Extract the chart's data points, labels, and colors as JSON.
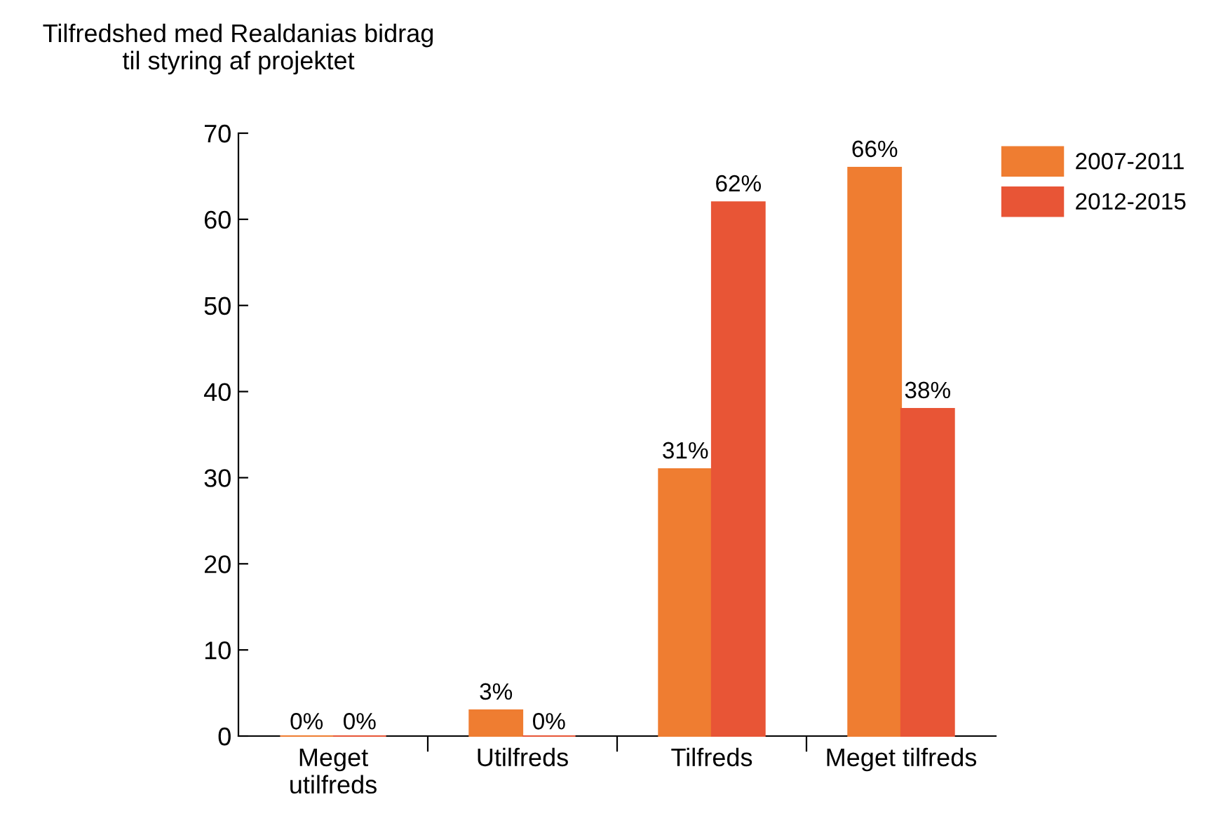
{
  "chart_data": {
    "type": "bar",
    "title": "Tilfredshed med Realdanias bidrag\ntil styring af projektet",
    "categories": [
      "Meget\nutilfreds",
      "Utilfreds",
      "Tilfreds",
      "Meget tilfreds"
    ],
    "series": [
      {
        "name": "2007-2011",
        "color": "#ef7d31",
        "values": [
          0,
          3,
          31,
          66
        ],
        "value_labels": [
          "0%",
          "3%",
          "31%",
          "66%"
        ]
      },
      {
        "name": "2012-2015",
        "color": "#e85536",
        "values": [
          0,
          0,
          62,
          38
        ],
        "value_labels": [
          "0%",
          "0%",
          "62%",
          "38%"
        ]
      }
    ],
    "ylim": [
      0,
      70
    ],
    "yticks": [
      0,
      10,
      20,
      30,
      40,
      50,
      60,
      70
    ],
    "grid": false,
    "legend": "top right"
  }
}
